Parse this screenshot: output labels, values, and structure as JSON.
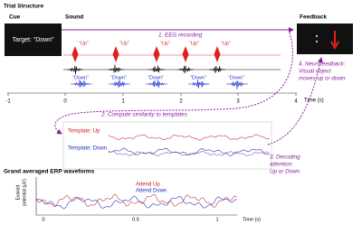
{
  "header": {
    "title": "Trial Structure"
  },
  "phases": {
    "cue": "Cue",
    "sound": "Sound",
    "feedback": "Feedback"
  },
  "cue_box": {
    "text": "Target: “Down”"
  },
  "up_labels": [
    "“Up”",
    "“Up”",
    "“Up”",
    "“Up”",
    "“Up”"
  ],
  "down_labels": [
    "“Down”",
    "“Down”",
    "“Down”",
    "“Down”",
    "“Down”"
  ],
  "steps": [
    [
      "1. EEG recording"
    ],
    [
      "2. Compute similarity to templates"
    ],
    [
      "3. Decoding",
      "attention:",
      "Up or Down"
    ],
    [
      "4. Neurofeedback:",
      "Visual object",
      "moves up or down"
    ]
  ],
  "timeline": {
    "ticks": [
      "-1",
      "0",
      "1",
      "2",
      "3",
      "4"
    ],
    "label": "Time (s)"
  },
  "templates": {
    "up": "Template: Up",
    "down": "Template: Down"
  },
  "erp": {
    "title": "Grand averaged ERP waveforms",
    "ylabel": [
      "Evoked",
      "potential (μV)"
    ],
    "legend": [
      "Attend Up",
      "Attend Down"
    ],
    "xticks": [
      "0",
      "0.5",
      "1"
    ],
    "xlabel": "Time (s)"
  }
}
